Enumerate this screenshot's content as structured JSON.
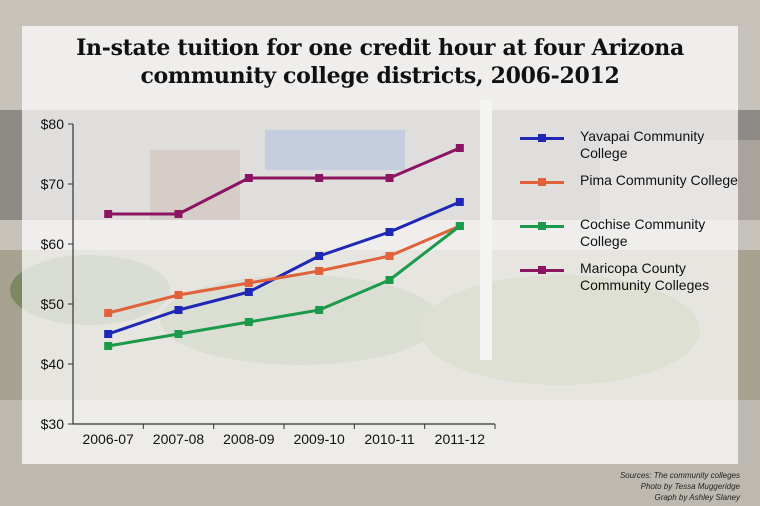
{
  "page": {
    "title": "In-state tuition for one credit hour at four Arizona community college districts, 2006-2012",
    "credits": [
      "Sources: The community colleges",
      "Photo by Tessa Muggeridge",
      "Graph by Ashley Slaney"
    ]
  },
  "colors": {
    "yavapai": "#1f28b4",
    "pima": "#e0613a",
    "cochise": "#1a9a4a",
    "maricopa": "#8c1563"
  },
  "chart_data": {
    "type": "line",
    "title": "In-state tuition for one credit hour at four Arizona community college districts, 2006-2012",
    "categories": [
      "2006-07",
      "2007-08",
      "2008-09",
      "2009-10",
      "2010-11",
      "2011-12"
    ],
    "y_ticks": [
      "$30",
      "$40",
      "$50",
      "$60",
      "$70",
      "$80"
    ],
    "ylim": [
      30,
      80
    ],
    "grid": false,
    "legend_position": "right",
    "series": [
      {
        "key": "yavapai",
        "name": "Yavapai Community College",
        "values": [
          45,
          49,
          52,
          58,
          62,
          67
        ]
      },
      {
        "key": "pima",
        "name": "Pima Community College",
        "values": [
          48.5,
          51.5,
          53.5,
          55.5,
          58,
          63
        ]
      },
      {
        "key": "cochise",
        "name": "Cochise Community College",
        "values": [
          43,
          45,
          47,
          49,
          54,
          63
        ]
      },
      {
        "key": "maricopa",
        "name": "Maricopa County Community Colleges",
        "values": [
          65,
          65,
          71,
          71,
          71,
          76
        ]
      }
    ]
  }
}
